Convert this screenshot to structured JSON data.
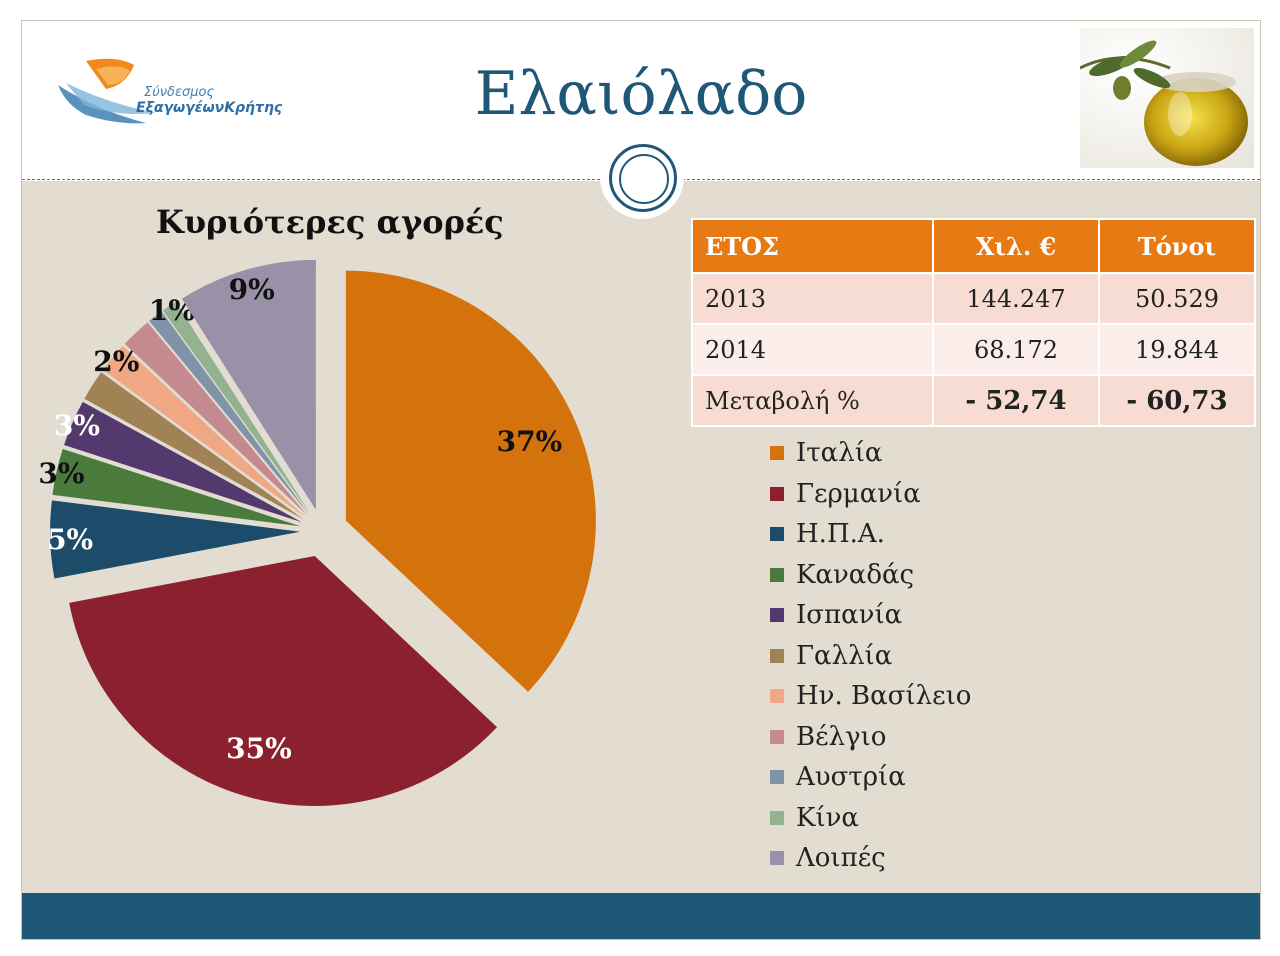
{
  "header": {
    "title": "Ελαιόλαδο",
    "logo": {
      "line1": "Σύνδεσμος",
      "line2": "ΕξαγωγέωνΚρήτης"
    },
    "photo_icon": "olive-oil-jar-photo"
  },
  "chart_data": {
    "type": "pie",
    "title": "Κυριότερες αγορές",
    "categories": [
      "Ιταλία",
      "Γερμανία",
      "Η.Π.Α.",
      "Καναδάς",
      "Ισπανία",
      "Γαλλία",
      "Ην. Βασίλειο",
      "Βέλγιο",
      "Αυστρία",
      "Κίνα",
      "Λοιπές"
    ],
    "values": [
      37,
      35,
      5,
      3,
      3,
      2,
      2,
      2,
      1,
      1,
      9
    ],
    "data_labels": [
      "37%",
      "35%",
      "5%",
      "3%",
      "3%",
      "",
      "2%",
      "",
      "",
      "1%",
      "9%"
    ],
    "colors": [
      "#d4720b",
      "#8b212e",
      "#1c4c69",
      "#4a7a3c",
      "#54396e",
      "#a08255",
      "#f0a784",
      "#c48a8f",
      "#7f94a9",
      "#93b28f",
      "#9891a8"
    ],
    "legend_position": "right"
  },
  "table": {
    "headers": [
      "ΕΤΟΣ",
      "Χιλ. €",
      "Τόνοι"
    ],
    "rows": [
      [
        "2013",
        "144.247",
        "50.529"
      ],
      [
        "2014",
        "68.172",
        "19.844"
      ],
      [
        "Μεταβολή %",
        "- 52,74",
        "- 60,73"
      ]
    ]
  }
}
